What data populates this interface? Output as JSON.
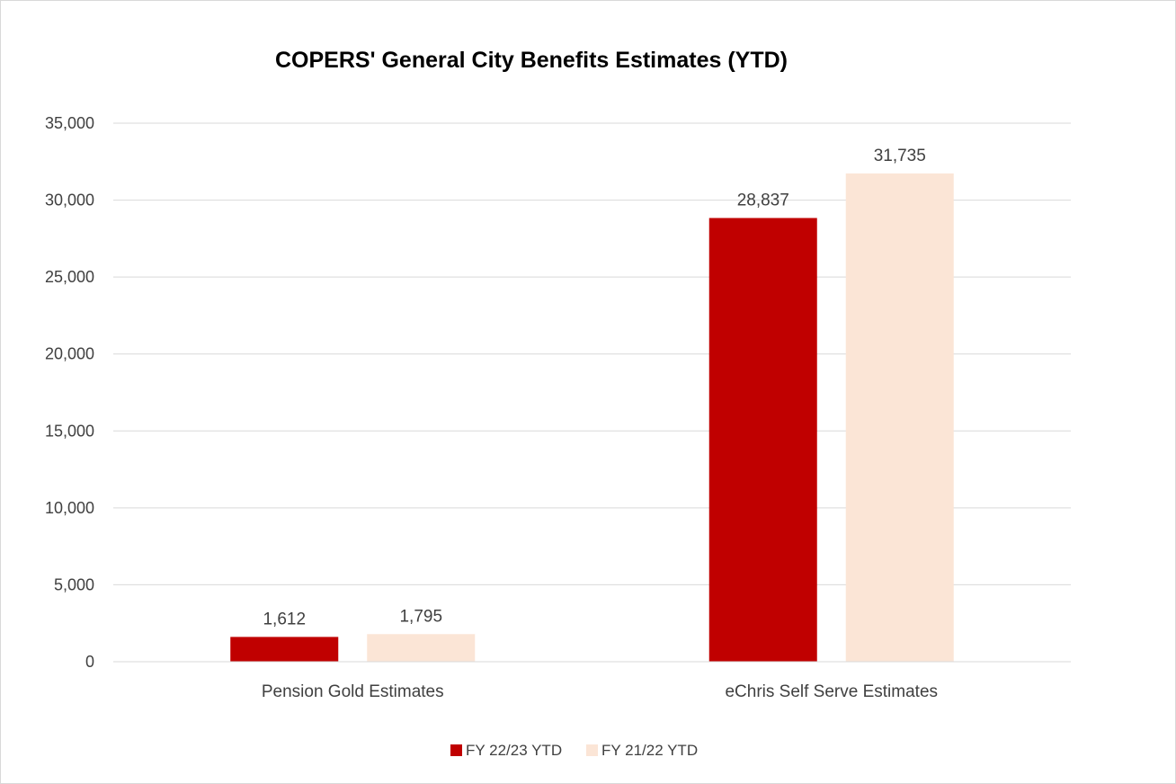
{
  "chart_data": {
    "type": "bar",
    "title": "COPERS' General City Benefits Estimates (YTD)",
    "xlabel": "",
    "ylabel": "",
    "categories": [
      "Pension Gold Estimates",
      "eChris Self Serve Estimates"
    ],
    "series": [
      {
        "name": "FY 22/23 YTD",
        "values": [
          1612,
          28837
        ],
        "labels": [
          "1,612",
          "28,837"
        ],
        "color": "#c00000"
      },
      {
        "name": "FY 21/22 YTD",
        "values": [
          1795,
          31735
        ],
        "labels": [
          "1,795",
          "31,735"
        ],
        "color": "#fbe5d6"
      }
    ],
    "ylim": [
      0,
      35000
    ],
    "yticks": [
      0,
      5000,
      10000,
      15000,
      20000,
      25000,
      30000,
      35000
    ],
    "ytick_labels": [
      "0",
      "5,000",
      "10,000",
      "15,000",
      "20,000",
      "25,000",
      "30,000",
      "35,000"
    ],
    "grid": true,
    "legend_position": "bottom",
    "gridline_color": "#d9d9d9"
  }
}
